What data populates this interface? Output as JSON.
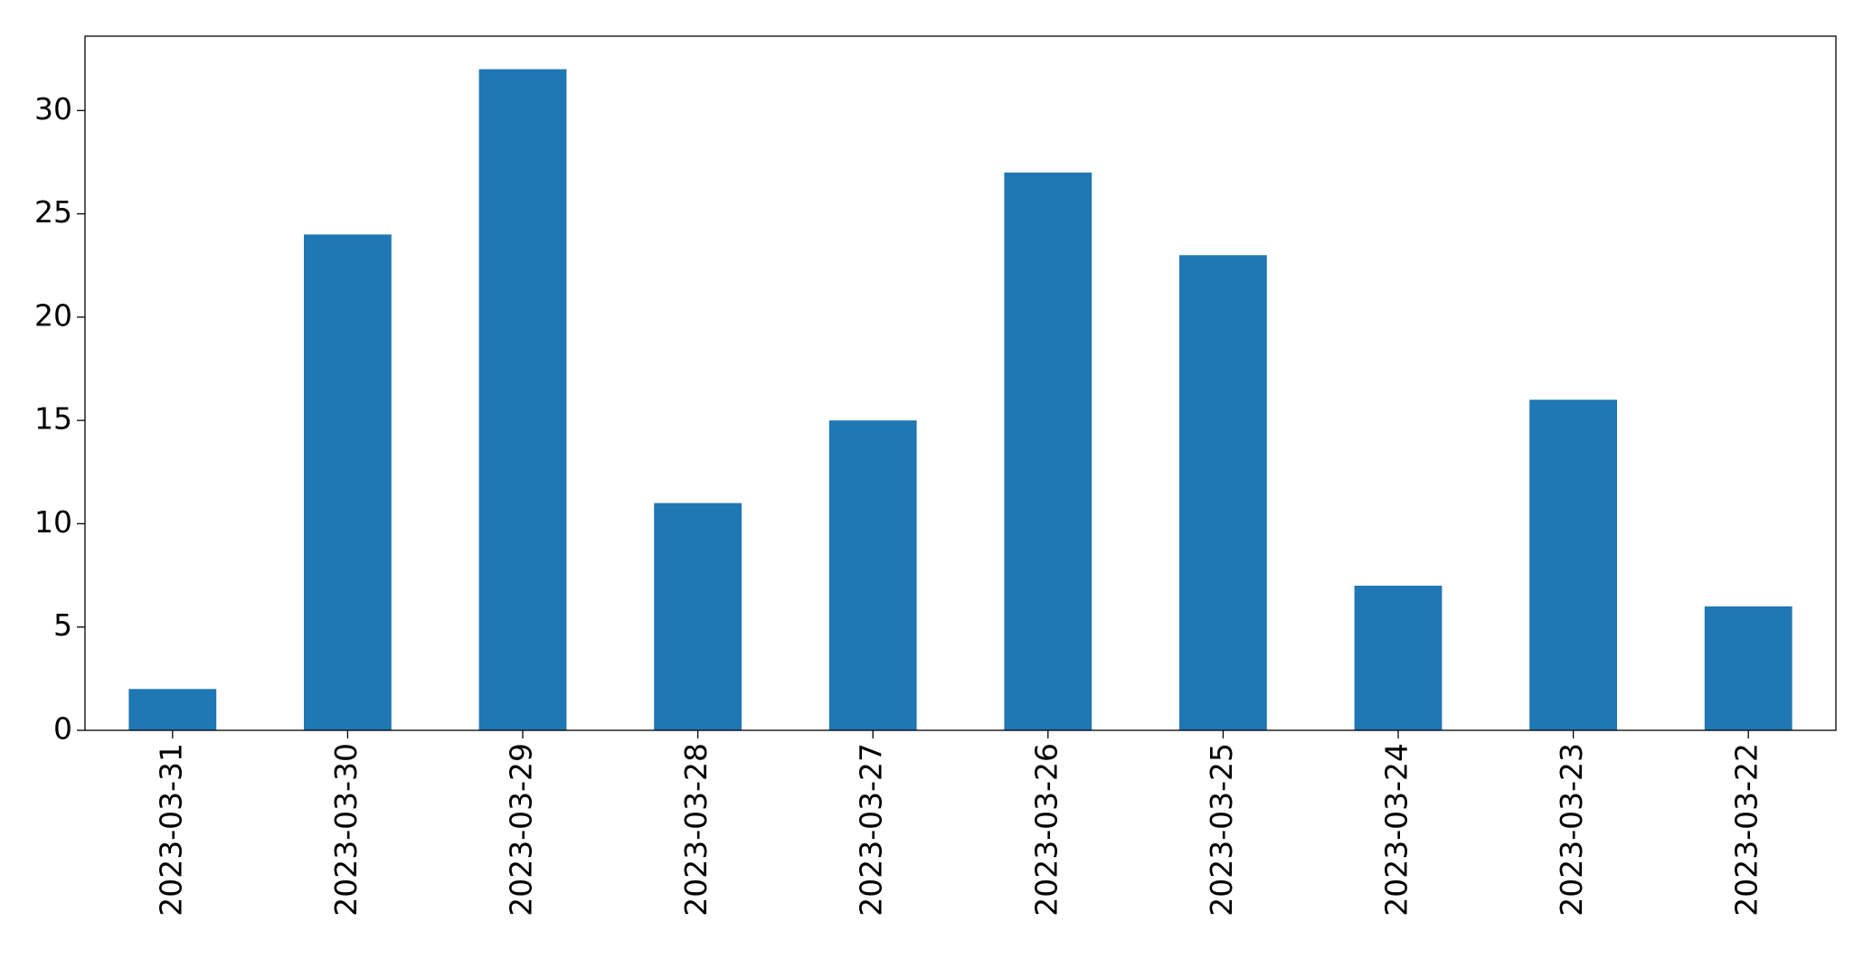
{
  "chart_data": {
    "type": "bar",
    "categories": [
      "2023-03-31",
      "2023-03-30",
      "2023-03-29",
      "2023-03-28",
      "2023-03-27",
      "2023-03-26",
      "2023-03-25",
      "2023-03-24",
      "2023-03-23",
      "2023-03-22"
    ],
    "values": [
      2,
      24,
      32,
      11,
      15,
      27,
      23,
      7,
      16,
      6
    ],
    "color": "#1f77b4",
    "ylim": [
      0,
      33.6
    ],
    "yticks": [
      0,
      5,
      10,
      15,
      20,
      25,
      30
    ],
    "grid": false
  }
}
